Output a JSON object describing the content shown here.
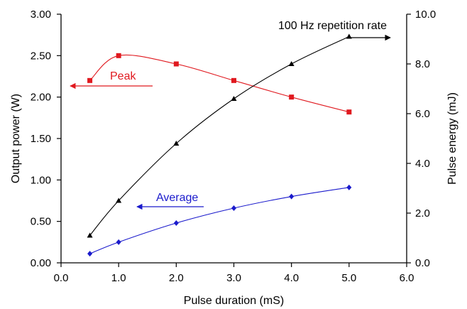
{
  "chart_data": {
    "type": "line",
    "title": "",
    "xlabel": "Pulse duration (mS)",
    "ylabel": "Output power (W)",
    "y2label": "Pulse energy (mJ)",
    "xlim": [
      0.0,
      6.0
    ],
    "ylim": [
      0.0,
      3.0
    ],
    "y2lim": [
      0.0,
      10.0
    ],
    "x_ticks": [
      "0.0",
      "1.0",
      "2.0",
      "3.0",
      "4.0",
      "5.0",
      "6.0"
    ],
    "y_ticks": [
      "0.00",
      "0.50",
      "1.00",
      "1.50",
      "2.00",
      "2.50",
      "3.00"
    ],
    "y2_ticks": [
      "0.0",
      "2.0",
      "4.0",
      "6.0",
      "8.0",
      "10.0"
    ],
    "grid": false,
    "series": [
      {
        "name": "Peak",
        "axis": "left",
        "color": "#e0191f",
        "marker": "square",
        "x": [
          0.5,
          1.0,
          2.0,
          3.0,
          4.0,
          5.0
        ],
        "y": [
          2.2,
          2.5,
          2.4,
          2.2,
          2.0,
          1.82
        ]
      },
      {
        "name": "Average",
        "axis": "left",
        "color": "#1a1acc",
        "marker": "diamond",
        "x": [
          0.5,
          1.0,
          2.0,
          3.0,
          4.0,
          5.0
        ],
        "y": [
          0.11,
          0.25,
          0.48,
          0.66,
          0.8,
          0.91
        ]
      },
      {
        "name": "",
        "axis": "right",
        "color": "#000000",
        "marker": "triangle",
        "x": [
          0.5,
          1.0,
          2.0,
          3.0,
          4.0,
          5.0
        ],
        "y": [
          1.1,
          2.5,
          4.8,
          6.6,
          8.0,
          9.1
        ]
      }
    ],
    "annotations": [
      {
        "text": "Peak",
        "color": "#e0191f",
        "series": "Peak",
        "arrow": "left"
      },
      {
        "text": "Average",
        "color": "#1a1acc",
        "series": "Average",
        "arrow": "left"
      },
      {
        "text": "100 Hz repetition rate",
        "color": "#000000",
        "series": "",
        "arrow": "right"
      }
    ]
  }
}
